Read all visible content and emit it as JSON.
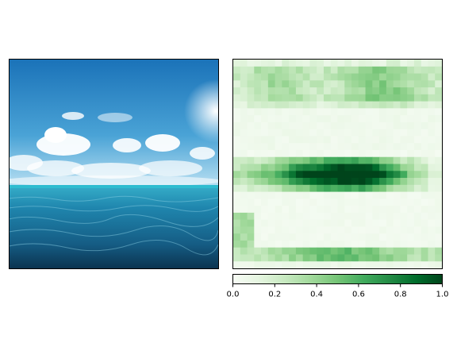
{
  "chart_data": [
    {
      "type": "image",
      "subject": "ocean and sky photograph",
      "colors": {
        "sky_top": "#1f7fc0",
        "sky_bottom": "#8ecbe8",
        "horizon": "#2eb6cc",
        "sea_top": "#2a8fb4",
        "sea_bottom": "#0b3450",
        "cloud": "#ffffff"
      }
    },
    {
      "type": "heatmap",
      "colormap": "Greens",
      "colors": {
        "low": "#f7fcf5",
        "mid": "#74c476",
        "high": "#00441b"
      },
      "rows": 30,
      "cols": 30,
      "bands": [
        {
          "row_range": [
            1,
            6
          ],
          "value": 0.25,
          "note": "upper patchy region"
        },
        {
          "row_range": [
            14,
            19
          ],
          "value": 0.95,
          "note": "strong horizontal band at horizon"
        },
        {
          "row_range": [
            27,
            29
          ],
          "value": 0.35,
          "note": "bottom band"
        }
      ],
      "colorbar": {
        "ticks": [
          "0.0",
          "0.2",
          "0.4",
          "0.6",
          "0.8",
          "1.0"
        ],
        "range": [
          0,
          1
        ]
      }
    }
  ]
}
